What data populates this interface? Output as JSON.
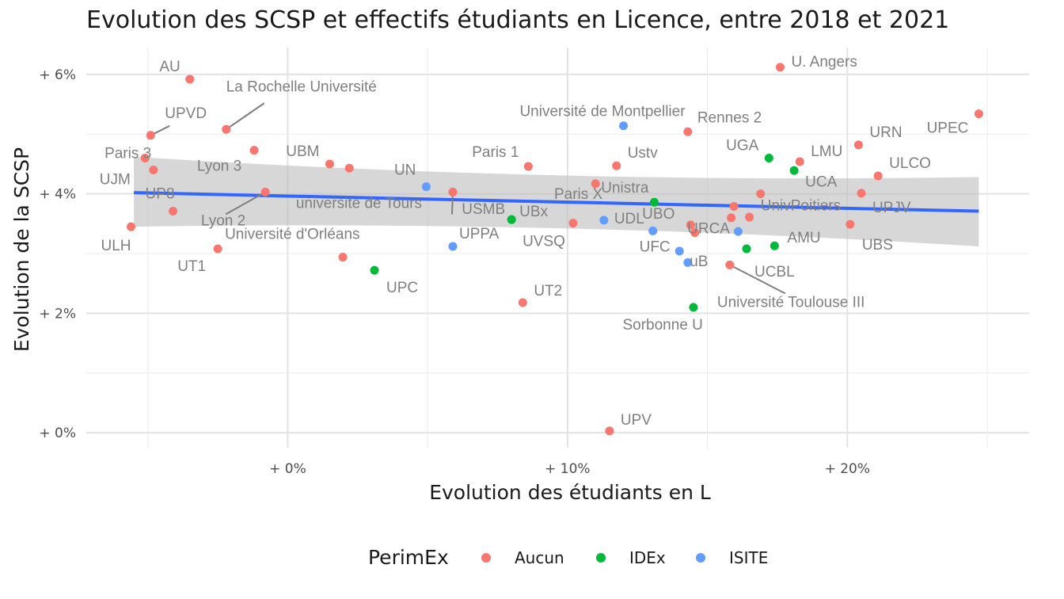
{
  "chart_data": {
    "type": "scatter",
    "title": "Evolution des SCSP et effectifs étudiants en Licence, entre 2018 et 2021",
    "xlabel": "Evolution des étudiants en L",
    "ylabel": "Evolution de la SCSP",
    "x_ticks": [
      {
        "value": 0,
        "label": "+ 0%"
      },
      {
        "value": 10,
        "label": "+ 10%"
      },
      {
        "value": 20,
        "label": "+ 20%"
      }
    ],
    "y_ticks": [
      {
        "value": 0,
        "label": "+ 0%"
      },
      {
        "value": 2,
        "label": "+ 2%"
      },
      {
        "value": 4,
        "label": "+ 4%"
      },
      {
        "value": 6,
        "label": "+ 6%"
      }
    ],
    "xlim": [
      -7.2,
      26.5
    ],
    "ylim": [
      -0.25,
      6.45
    ],
    "grid": true,
    "legend": {
      "title": "PerimEx",
      "position": "bottom",
      "entries": [
        {
          "name": "Aucun",
          "color": "#F8766D"
        },
        {
          "name": "IDEx",
          "color": "#00BA38"
        },
        {
          "name": "ISITE",
          "color": "#619CFF"
        }
      ]
    },
    "trend": {
      "method": "linear",
      "color": "#3366FF",
      "x": [
        -5.5,
        24.7
      ],
      "y": [
        4.02,
        3.71
      ],
      "band_lower": [
        3.45,
        3.12
      ],
      "band_upper": [
        4.62,
        4.28
      ],
      "band_color": "#BEBEBE"
    },
    "points": [
      {
        "label": "AU",
        "x": -3.5,
        "y": 5.92,
        "group": "Aucun"
      },
      {
        "label": "La Rochelle Université",
        "x": -2.2,
        "y": 5.08,
        "group": "Aucun"
      },
      {
        "label": "UPVD",
        "x": -4.9,
        "y": 4.98,
        "group": "Aucun"
      },
      {
        "label": "Paris 3",
        "x": -5.1,
        "y": 4.6,
        "group": "Aucun"
      },
      {
        "label": "UJM",
        "x": -4.8,
        "y": 4.4,
        "group": "Aucun"
      },
      {
        "label": "",
        "x": -1.2,
        "y": 4.73,
        "group": "Aucun"
      },
      {
        "label": "UBM",
        "x": 1.5,
        "y": 4.5,
        "group": "Aucun"
      },
      {
        "label": "Lyon 3",
        "x": 2.2,
        "y": 4.43,
        "group": "Aucun"
      },
      {
        "label": "Lyon 2",
        "x": -0.8,
        "y": 4.03,
        "group": "Aucun"
      },
      {
        "label": "UP8",
        "x": -4.1,
        "y": 3.71,
        "group": "Aucun"
      },
      {
        "label": "ULH",
        "x": -5.6,
        "y": 3.45,
        "group": "Aucun"
      },
      {
        "label": "UT1",
        "x": -2.5,
        "y": 3.08,
        "group": "Aucun"
      },
      {
        "label": "Université d'Orléans",
        "x": 1.97,
        "y": 2.94,
        "group": "Aucun"
      },
      {
        "label": "UPC",
        "x": 3.1,
        "y": 2.72,
        "group": "IDEx"
      },
      {
        "label": "UN",
        "x": 4.95,
        "y": 4.12,
        "group": "ISITE"
      },
      {
        "label": "universite de Tours",
        "x": 5.9,
        "y": 4.03,
        "group": "Aucun"
      },
      {
        "label": "UPPA",
        "x": 5.9,
        "y": 3.12,
        "group": "ISITE"
      },
      {
        "label": "USMB",
        "x": 8.0,
        "y": 3.57,
        "group": "IDEx"
      },
      {
        "label": "Paris 1",
        "x": 8.6,
        "y": 4.46,
        "group": "Aucun"
      },
      {
        "label": "UT2",
        "x": 8.4,
        "y": 2.18,
        "group": "Aucun"
      },
      {
        "label": "UBx",
        "x": 8.0,
        "y": 3.57,
        "group": "IDEx"
      },
      {
        "label": "UVSQ",
        "x": 10.2,
        "y": 3.51,
        "group": "Aucun"
      },
      {
        "label": "Paris X",
        "x": 11.0,
        "y": 4.17,
        "group": "Aucun"
      },
      {
        "label": "Université de Montpellier",
        "x": 12.0,
        "y": 5.14,
        "group": "ISITE"
      },
      {
        "label": "Ustv",
        "x": 11.75,
        "y": 4.47,
        "group": "Aucun"
      },
      {
        "label": "UDL",
        "x": 11.3,
        "y": 3.56,
        "group": "ISITE"
      },
      {
        "label": "Unistra",
        "x": 13.1,
        "y": 3.86,
        "group": "IDEx"
      },
      {
        "label": "UBO",
        "x": 14.4,
        "y": 3.48,
        "group": "Aucun"
      },
      {
        "label": "Rennes 2",
        "x": 14.3,
        "y": 5.04,
        "group": "Aucun"
      },
      {
        "label": "UFC",
        "x": 13.05,
        "y": 3.38,
        "group": "ISITE"
      },
      {
        "label": "",
        "x": 14.55,
        "y": 3.35,
        "group": "Aucun"
      },
      {
        "label": "uB",
        "x": 14.0,
        "y": 3.04,
        "group": "ISITE"
      },
      {
        "label": "",
        "x": 14.3,
        "y": 2.85,
        "group": "ISITE"
      },
      {
        "label": "Sorbonne U",
        "x": 14.5,
        "y": 2.1,
        "group": "IDEx"
      },
      {
        "label": "UPV",
        "x": 11.5,
        "y": 0.03,
        "group": "Aucun"
      },
      {
        "label": "URCA",
        "x": 15.95,
        "y": 3.79,
        "group": "Aucun"
      },
      {
        "label": "",
        "x": 15.85,
        "y": 3.6,
        "group": "Aucun"
      },
      {
        "label": "Université Toulouse III",
        "x": 15.8,
        "y": 2.81,
        "group": "Aucun"
      },
      {
        "label": "",
        "x": 16.1,
        "y": 3.37,
        "group": "ISITE"
      },
      {
        "label": "",
        "x": 16.5,
        "y": 3.61,
        "group": "Aucun"
      },
      {
        "label": "UnivPoitiers",
        "x": 16.9,
        "y": 4.0,
        "group": "Aucun"
      },
      {
        "label": "UCBL",
        "x": 16.4,
        "y": 3.08,
        "group": "IDEx"
      },
      {
        "label": "AMU",
        "x": 17.4,
        "y": 3.13,
        "group": "IDEx"
      },
      {
        "label": "UGA",
        "x": 17.2,
        "y": 4.6,
        "group": "IDEx"
      },
      {
        "label": "UCA",
        "x": 18.1,
        "y": 4.39,
        "group": "IDEx"
      },
      {
        "label": "LMU",
        "x": 18.3,
        "y": 4.54,
        "group": "Aucun"
      },
      {
        "label": "U. Angers",
        "x": 17.6,
        "y": 6.12,
        "group": "Aucun"
      },
      {
        "label": "URN",
        "x": 20.4,
        "y": 4.82,
        "group": "Aucun"
      },
      {
        "label": "UPEC",
        "x": 24.7,
        "y": 5.34,
        "group": "Aucun"
      },
      {
        "label": "ULCO",
        "x": 21.1,
        "y": 4.3,
        "group": "Aucun"
      },
      {
        "label": "UPJV",
        "x": 20.5,
        "y": 4.01,
        "group": "Aucun"
      },
      {
        "label": "UBS",
        "x": 20.1,
        "y": 3.49,
        "group": "Aucun"
      }
    ]
  }
}
